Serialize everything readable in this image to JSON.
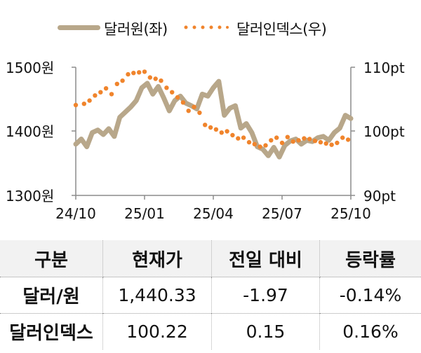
{
  "legend": {
    "series1_label": "달러원(좌)",
    "series2_label": "달러인덱스(우)"
  },
  "colors": {
    "krw_line": "#b8a78a",
    "dxy_dots": "#f0842c",
    "axis": "#8c8c8c",
    "table_header_bg": "#f2f2f2"
  },
  "axes": {
    "left_ticks": [
      "1500원",
      "1400원",
      "1300원"
    ],
    "right_ticks": [
      "110pt",
      "100pt",
      "90pt"
    ],
    "x_ticks": [
      "24/10",
      "25/01",
      "25/04",
      "25/07",
      "25/10"
    ]
  },
  "chart_data": {
    "type": "line",
    "title": "",
    "xlabel": "",
    "ylabel": "",
    "x_ticks": [
      "24/10",
      "25/01",
      "25/04",
      "25/07",
      "25/10"
    ],
    "legend_position": "top",
    "grid": false,
    "series": [
      {
        "name": "달러원(좌)",
        "axis": "left",
        "ylim": [
          1300,
          1500
        ],
        "style": "thick line",
        "x": [
          0,
          0.02,
          0.04,
          0.06,
          0.08,
          0.1,
          0.12,
          0.14,
          0.16,
          0.18,
          0.2,
          0.22,
          0.24,
          0.26,
          0.28,
          0.3,
          0.32,
          0.34,
          0.36,
          0.38,
          0.4,
          0.42,
          0.44,
          0.46,
          0.48,
          0.5,
          0.52,
          0.54,
          0.56,
          0.58,
          0.6,
          0.62,
          0.64,
          0.66,
          0.68,
          0.7,
          0.72,
          0.74,
          0.76,
          0.78,
          0.8,
          0.82,
          0.84,
          0.86,
          0.88,
          0.9,
          0.92,
          0.94,
          0.96,
          0.98,
          1.0
        ],
        "values": [
          1380,
          1388,
          1376,
          1398,
          1402,
          1395,
          1404,
          1392,
          1422,
          1430,
          1438,
          1448,
          1468,
          1475,
          1458,
          1470,
          1452,
          1432,
          1448,
          1455,
          1444,
          1440,
          1435,
          1458,
          1455,
          1468,
          1478,
          1425,
          1436,
          1440,
          1405,
          1412,
          1398,
          1376,
          1372,
          1362,
          1375,
          1360,
          1378,
          1385,
          1388,
          1380,
          1386,
          1384,
          1390,
          1392,
          1386,
          1398,
          1405,
          1425,
          1420
        ],
        "current_value": 1440.33,
        "change": -1.97,
        "change_pct": "-0.14%"
      },
      {
        "name": "달러인덱스(우)",
        "axis": "right",
        "ylim": [
          90,
          110
        ],
        "style": "dotted markers",
        "x": [
          0,
          0.03,
          0.05,
          0.07,
          0.09,
          0.11,
          0.13,
          0.15,
          0.17,
          0.19,
          0.21,
          0.23,
          0.25,
          0.27,
          0.29,
          0.31,
          0.33,
          0.35,
          0.37,
          0.39,
          0.41,
          0.43,
          0.45,
          0.47,
          0.49,
          0.51,
          0.53,
          0.55,
          0.57,
          0.59,
          0.61,
          0.63,
          0.65,
          0.67,
          0.69,
          0.71,
          0.73,
          0.75,
          0.77,
          0.79,
          0.81,
          0.83,
          0.85,
          0.87,
          0.89,
          0.91,
          0.93,
          0.95,
          0.97,
          0.99
        ],
        "values": [
          104.1,
          104.3,
          104.8,
          105.6,
          106.1,
          106.7,
          105.8,
          107.4,
          107.9,
          108.9,
          109.1,
          109.2,
          109.3,
          108.4,
          108.2,
          107.9,
          106.8,
          106.1,
          105.3,
          104.5,
          103.2,
          103.8,
          102.9,
          101.0,
          100.6,
          100.3,
          99.8,
          100.0,
          99.4,
          98.9,
          99.0,
          98.3,
          98.0,
          97.6,
          97.8,
          98.6,
          99.0,
          98.2,
          99.1,
          98.4,
          98.6,
          98.9,
          98.8,
          98.5,
          98.3,
          98.1,
          97.9,
          98.2,
          99.0,
          98.7
        ],
        "current_value": 100.22,
        "change": 0.15,
        "change_pct": "0.16%"
      }
    ]
  },
  "table": {
    "headers": [
      "구분",
      "현재가",
      "전일 대비",
      "등락률"
    ],
    "rows": [
      {
        "label": "달러/원",
        "price": "1,440.33",
        "change": "-1.97",
        "rate": "-0.14%"
      },
      {
        "label": "달러인덱스",
        "price": "100.22",
        "change": "0.15",
        "rate": "0.16%"
      }
    ]
  }
}
